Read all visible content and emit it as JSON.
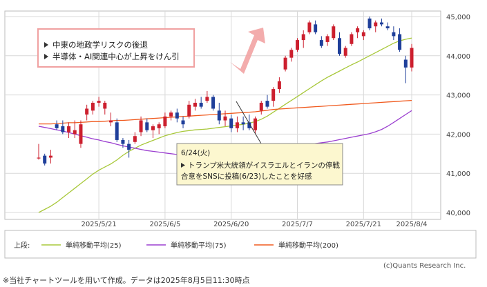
{
  "chart_data": {
    "type": "candlestick",
    "y_ticks": [
      "45,000",
      "44,000",
      "43,000",
      "42,000",
      "41,000",
      "40,000"
    ],
    "x_ticks": [
      "2025/5/21",
      "2025/6/5",
      "2025/6/20",
      "2025/7/7",
      "2025/7/21",
      "2025/8/4"
    ],
    "ylim": [
      40000,
      45100
    ],
    "grid": true,
    "colors": {
      "up": "#cc1f2e",
      "down": "#1f3f9a",
      "ma25": "#a8c83a",
      "ma75": "#9b3fd0",
      "ma200": "#f05a1e",
      "arrow": "#f2a3a3"
    },
    "candles": [
      [
        41400,
        41750,
        41350,
        41400
      ],
      [
        41450,
        41500,
        41200,
        41250
      ],
      [
        41400,
        41600,
        41250,
        41450
      ],
      [
        42250,
        42350,
        42100,
        42150
      ],
      [
        42200,
        42350,
        42000,
        42050
      ],
      [
        42050,
        42300,
        41900,
        42200
      ],
      [
        42000,
        42350,
        41900,
        42100
      ],
      [
        41750,
        42350,
        41650,
        42250
      ],
      [
        42500,
        42750,
        42350,
        42650
      ],
      [
        42600,
        42850,
        42500,
        42800
      ],
      [
        42800,
        42950,
        42700,
        42850
      ],
      [
        42650,
        42850,
        42500,
        42800
      ],
      [
        42300,
        42550,
        42200,
        42350
      ],
      [
        42300,
        42400,
        41800,
        41850
      ],
      [
        41850,
        41900,
        41650,
        41750
      ],
      [
        41750,
        41850,
        41400,
        41600
      ],
      [
        41800,
        42050,
        41750,
        41950
      ],
      [
        42050,
        42450,
        41950,
        42350
      ],
      [
        42300,
        42400,
        42050,
        42100
      ],
      [
        42100,
        42250,
        41900,
        42200
      ],
      [
        42150,
        42300,
        42000,
        42250
      ],
      [
        42200,
        42550,
        42150,
        42450
      ],
      [
        42450,
        42600,
        42350,
        42550
      ],
      [
        42550,
        42650,
        42300,
        42400
      ],
      [
        42350,
        42450,
        42150,
        42250
      ],
      [
        42450,
        42850,
        42400,
        42750
      ],
      [
        42700,
        42900,
        42600,
        42800
      ],
      [
        42800,
        42950,
        42650,
        42700
      ],
      [
        42850,
        43100,
        42800,
        42950
      ],
      [
        42950,
        43000,
        42600,
        42650
      ],
      [
        42600,
        42800,
        42250,
        42350
      ],
      [
        42350,
        42600,
        42200,
        42450
      ],
      [
        42400,
        42500,
        42050,
        42150
      ],
      [
        42150,
        42450,
        42050,
        42300
      ],
      [
        42300,
        42450,
        42100,
        42250
      ],
      [
        42300,
        42500,
        42100,
        42150
      ],
      [
        42100,
        42450,
        42000,
        42400
      ],
      [
        42600,
        42850,
        42500,
        42800
      ],
      [
        42850,
        43000,
        42650,
        42700
      ],
      [
        42850,
        43200,
        42700,
        43150
      ],
      [
        43150,
        43450,
        43050,
        43350
      ],
      [
        43650,
        44000,
        43600,
        43950
      ],
      [
        43950,
        44200,
        43850,
        44150
      ],
      [
        44150,
        44450,
        44100,
        44400
      ],
      [
        44400,
        44650,
        44200,
        44550
      ],
      [
        44600,
        44900,
        44550,
        44850
      ],
      [
        44800,
        44900,
        44550,
        44600
      ],
      [
        44400,
        44500,
        44200,
        44250
      ],
      [
        44350,
        44550,
        44250,
        44500
      ],
      [
        44450,
        44800,
        44400,
        44750
      ],
      [
        44450,
        44600,
        44000,
        44050
      ],
      [
        44000,
        44250,
        43950,
        44200
      ],
      [
        44300,
        44600,
        44250,
        44550
      ],
      [
        44600,
        44750,
        44450,
        44700
      ],
      [
        44500,
        44650,
        44400,
        44600
      ],
      [
        44950,
        45000,
        44650,
        44700
      ],
      [
        44750,
        44900,
        44600,
        44850
      ],
      [
        44850,
        44950,
        44750,
        44800
      ],
      [
        44750,
        44850,
        44650,
        44700
      ],
      [
        44600,
        44750,
        44400,
        44500
      ],
      [
        44550,
        44700,
        44100,
        44150
      ],
      [
        43900,
        44000,
        43300,
        43700
      ],
      [
        43700,
        44300,
        43600,
        44200
      ]
    ],
    "series": [
      {
        "name": "単純移動平均(25)",
        "values": [
          40000,
          40080,
          40160,
          40260,
          40380,
          40500,
          40620,
          40740,
          40860,
          40980,
          41080,
          41160,
          41240,
          41340,
          41460,
          41560,
          41640,
          41720,
          41780,
          41840,
          41900,
          41960,
          42000,
          42040,
          42070,
          42090,
          42110,
          42120,
          42130,
          42150,
          42170,
          42190,
          42210,
          42230,
          42250,
          42280,
          42320,
          42380,
          42460,
          42560,
          42660,
          42760,
          42860,
          42960,
          43060,
          43160,
          43260,
          43360,
          43450,
          43530,
          43610,
          43690,
          43770,
          43840,
          43920,
          44000,
          44080,
          44160,
          44240,
          44320,
          44380,
          44420,
          44450
        ]
      },
      {
        "name": "単純移動平均(75)",
        "values": [
          42200,
          42170,
          42140,
          42110,
          42080,
          42040,
          42000,
          41960,
          41920,
          41880,
          41850,
          41810,
          41780,
          41740,
          41700,
          41670,
          41640,
          41610,
          41580,
          41560,
          41540,
          41520,
          41500,
          41480,
          41470,
          41460,
          41450,
          41450,
          41450,
          41460,
          41470,
          41480,
          41490,
          41500,
          41520,
          41540,
          41560,
          41580,
          41600,
          41620,
          41640,
          41660,
          41680,
          41700,
          41720,
          41740,
          41760,
          41780,
          41800,
          41830,
          41860,
          41890,
          41920,
          41950,
          41980,
          42010,
          42060,
          42120,
          42200,
          42300,
          42400,
          42500,
          42600
        ]
      },
      {
        "name": "単純移動平均(200)",
        "values": [
          42260,
          42260,
          42260,
          42270,
          42280,
          42290,
          42290,
          42300,
          42310,
          42320,
          42320,
          42330,
          42340,
          42350,
          42350,
          42360,
          42370,
          42380,
          42390,
          42400,
          42410,
          42420,
          42430,
          42440,
          42450,
          42460,
          42470,
          42480,
          42490,
          42500,
          42510,
          42520,
          42530,
          42540,
          42550,
          42560,
          42570,
          42590,
          42610,
          42630,
          42640,
          42650,
          42660,
          42670,
          42680,
          42690,
          42700,
          42710,
          42720,
          42730,
          42740,
          42750,
          42760,
          42770,
          42780,
          42790,
          42800,
          42810,
          42820,
          42830,
          42840,
          42850,
          42860
        ]
      }
    ],
    "annotation_box_lines": [
      "中東の地政学リスクの後退",
      "半導体・AI関連中心が上昇をけん引"
    ],
    "callout_lines": [
      "6/24(火)",
      "トランプ米大統領がイスラエルとイランの停戦",
      "合意をSNSに投稿(6/23)したことを好感"
    ],
    "legend_prefix": "上段:"
  },
  "copyright": "(c)Quants Research Inc.",
  "footnote": "※当社チャートツールを用いて作成。データは2025年8月5日11:30時点"
}
